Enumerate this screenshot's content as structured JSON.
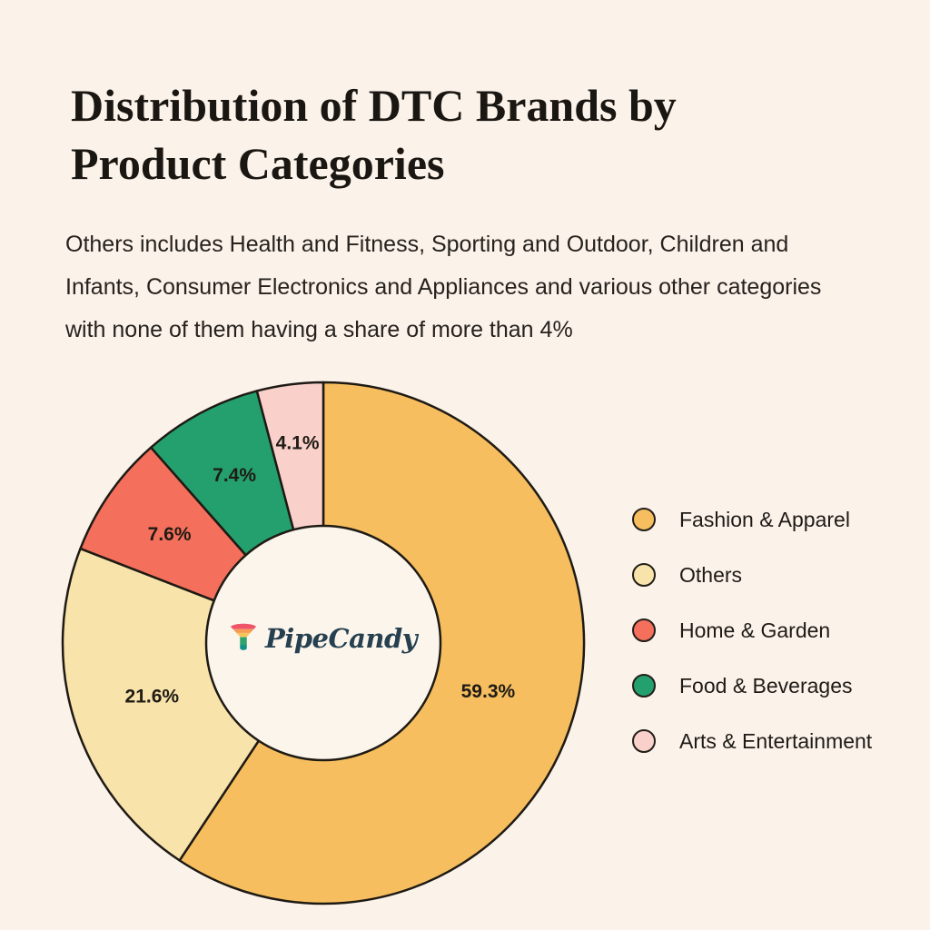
{
  "page": {
    "background": "#FBF2EA"
  },
  "header": {
    "title_lines": [
      "Distribution of DTC Brands by",
      "Product Categories"
    ],
    "subtitle_lines": [
      "Others includes Health and Fitness, Sporting and Outdoor, Children and",
      "Infants, Consumer Electronics and Appliances and various other categories",
      "with none of them having a share of more than 4%"
    ]
  },
  "logo": {
    "text": "PipeCandy",
    "icon": "funnel-icon",
    "text_color": "#26404F",
    "funnel_colors": [
      "#EF5468",
      "#F79B55",
      "#F8C55B",
      "#2EA46C",
      "#129188"
    ]
  },
  "chart_data": {
    "type": "pie",
    "variant": "donut",
    "title": "Distribution of DTC Brands by Product Categories",
    "categories": [
      "Fashion & Apparel",
      "Others",
      "Home & Garden",
      "Food & Beverages",
      "Arts & Entertainment"
    ],
    "values": [
      59.3,
      21.6,
      7.6,
      7.4,
      4.1
    ],
    "labels": [
      "59.3%",
      "21.6%",
      "7.6%",
      "7.4%",
      "4.1%"
    ],
    "colors": [
      "#F6BE5F",
      "#F8E3AB",
      "#F4705C",
      "#24A06E",
      "#F9D1CA"
    ],
    "total": 100,
    "start_angle_deg": 0,
    "direction": "clockwise",
    "stroke": "#1E1A14",
    "hole_color": "#FCF5EC",
    "label_color": "#1F1B15",
    "legend_position": "right"
  }
}
